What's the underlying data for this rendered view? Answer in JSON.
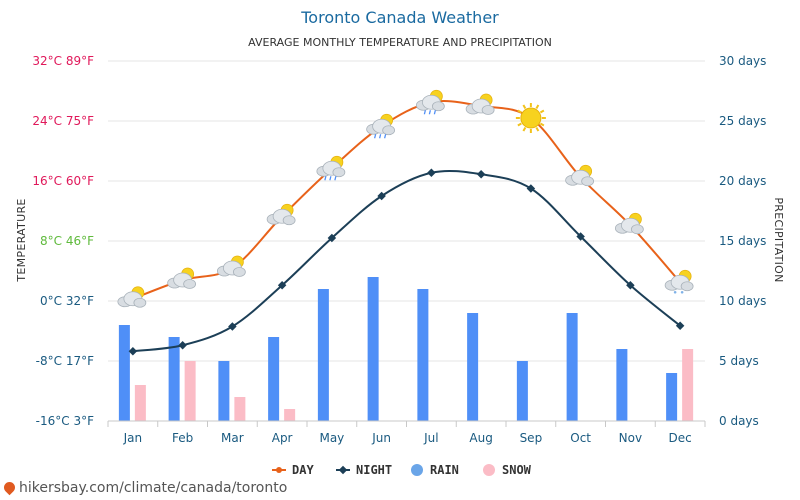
{
  "title": "Toronto Canada Weather",
  "subtitle": "AVERAGE MONTHLY TEMPERATURE AND PRECIPITATION",
  "footer_url": "hikersbay.com/climate/canada/toronto",
  "colors": {
    "day": "#e8621a",
    "night": "#1c3f57",
    "rain": "#4f8ff7",
    "snow": "#fbbcc6",
    "right_axis": "#1a5a80"
  },
  "chart_data": {
    "type": "combo-line-bar",
    "title": "Toronto Canada Weather",
    "subtitle": "AVERAGE MONTHLY TEMPERATURE AND PRECIPITATION",
    "categories": [
      "Jan",
      "Feb",
      "Mar",
      "Apr",
      "May",
      "Jun",
      "Jul",
      "Aug",
      "Sep",
      "Oct",
      "Nov",
      "Dec"
    ],
    "y_left": {
      "label": "TEMPERATURE",
      "range_c": [
        -16,
        32
      ],
      "ticks": [
        {
          "value": 32,
          "label": "32°C 89°F",
          "color": "#e0185a"
        },
        {
          "value": 24,
          "label": "24°C 75°F",
          "color": "#e0185a"
        },
        {
          "value": 16,
          "label": "16°C 60°F",
          "color": "#e0185a"
        },
        {
          "value": 8,
          "label": "8°C 46°F",
          "color": "#5fba3c"
        },
        {
          "value": 0,
          "label": "0°C 32°F",
          "color": "#1a5a80"
        },
        {
          "value": -8,
          "label": "-8°C 17°F",
          "color": "#1a5a80"
        },
        {
          "value": -16,
          "label": "-16°C 3°F",
          "color": "#1a5a80"
        }
      ]
    },
    "y_right": {
      "label": "PRECIPITATION",
      "range": [
        0,
        30
      ],
      "ticks": [
        {
          "value": 30,
          "label": "30 days"
        },
        {
          "value": 25,
          "label": "25 days"
        },
        {
          "value": 20,
          "label": "20 days"
        },
        {
          "value": 15,
          "label": "15 days"
        },
        {
          "value": 10,
          "label": "10 days"
        },
        {
          "value": 5,
          "label": "5 days"
        },
        {
          "value": 0,
          "label": "0 days"
        }
      ]
    },
    "series": [
      {
        "name": "DAY",
        "type": "line",
        "axis": "left",
        "values": [
          0.3,
          2.8,
          4.4,
          11.3,
          17.7,
          23.3,
          26.5,
          26.0,
          24.4,
          16.5,
          10.1,
          2.5
        ]
      },
      {
        "name": "NIGHT",
        "type": "line",
        "axis": "left",
        "values": [
          -6.7,
          -5.9,
          -3.4,
          2.1,
          8.4,
          14.0,
          17.1,
          16.9,
          15.0,
          8.6,
          2.1,
          -3.3
        ]
      },
      {
        "name": "RAIN",
        "type": "bar",
        "axis": "right",
        "values": [
          8,
          7,
          5,
          7,
          11,
          12,
          11,
          9,
          5,
          9,
          6,
          4
        ]
      },
      {
        "name": "SNOW",
        "type": "bar",
        "axis": "right",
        "values": [
          3,
          5,
          2,
          1,
          0,
          0,
          0,
          0,
          0,
          0,
          0,
          6
        ]
      }
    ],
    "weather_icons": [
      "partly-cloudy-sun",
      "partly-cloudy-sun",
      "partly-cloudy-sun",
      "partly-cloudy-sun",
      "partly-cloudy-rain",
      "partly-cloudy-rain",
      "partly-cloudy-rain",
      "partly-cloudy-sun",
      "sunny",
      "partly-cloudy-sun",
      "partly-cloudy-sun",
      "partly-cloudy-snow"
    ],
    "legend": [
      {
        "name": "DAY",
        "symbol": "line-dot",
        "color": "#e8621a"
      },
      {
        "name": "NIGHT",
        "symbol": "line-diamond",
        "color": "#1c3f57"
      },
      {
        "name": "RAIN",
        "symbol": "circle",
        "color": "#6aa5e8"
      },
      {
        "name": "SNOW",
        "symbol": "circle",
        "color": "#fbbcc6"
      }
    ],
    "legend_position": "bottom-center",
    "grid": true
  }
}
